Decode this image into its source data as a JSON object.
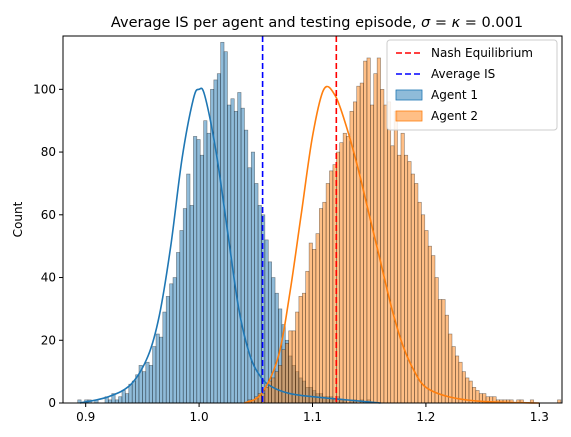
{
  "chart_data": {
    "type": "bar",
    "title": "Average IS per agent and testing episode, σ = κ = 0.001",
    "xlabel": "",
    "ylabel": "Count",
    "xlim": [
      0.88,
      1.32
    ],
    "ylim": [
      0,
      117
    ],
    "x_ticks": [
      0.9,
      1.0,
      1.1,
      1.2,
      1.3
    ],
    "x_tick_labels": [
      "0.9",
      "1.0",
      "1.1",
      "1.2",
      "1.3"
    ],
    "y_ticks": [
      0,
      20,
      40,
      60,
      80,
      100
    ],
    "y_tick_labels": [
      "0",
      "20",
      "40",
      "60",
      "80",
      "100"
    ],
    "grid": false,
    "legend": "top-right",
    "bin_width": 0.003,
    "series": [
      {
        "name": "Agent 1",
        "kind": "histogram",
        "color": "#1f77b4",
        "bin_start": 0.893,
        "counts": [
          1,
          0,
          1,
          1,
          0,
          1,
          0,
          0,
          2,
          1,
          3,
          1,
          2,
          4,
          3,
          6,
          7,
          9,
          12,
          10,
          13,
          12,
          18,
          22,
          21,
          29,
          34,
          38,
          40,
          48,
          55,
          62,
          73,
          63,
          85,
          84,
          79,
          90,
          86,
          100,
          103,
          105,
          115,
          112,
          95,
          97,
          93,
          99,
          94,
          87,
          75,
          80,
          70,
          63,
          60,
          52,
          45,
          40,
          35,
          30,
          25,
          20,
          15,
          12,
          10,
          8,
          7,
          5,
          5,
          4,
          3,
          3,
          2,
          2,
          2,
          1,
          2,
          1,
          1,
          0,
          1,
          1,
          0,
          1,
          0,
          1
        ],
        "kde": [
          [
            0.895,
            0
          ],
          [
            0.92,
            2
          ],
          [
            0.94,
            6
          ],
          [
            0.955,
            15
          ],
          [
            0.965,
            28
          ],
          [
            0.975,
            50
          ],
          [
            0.985,
            78
          ],
          [
            0.995,
            97
          ],
          [
            1.0,
            100
          ],
          [
            1.005,
            98
          ],
          [
            1.015,
            80
          ],
          [
            1.025,
            55
          ],
          [
            1.035,
            30
          ],
          [
            1.045,
            15
          ],
          [
            1.055,
            8
          ],
          [
            1.065,
            5
          ],
          [
            1.08,
            3
          ],
          [
            1.1,
            2
          ],
          [
            1.13,
            1
          ],
          [
            1.16,
            0
          ]
        ]
      },
      {
        "name": "Agent 2",
        "kind": "histogram",
        "color": "#ff7f0e",
        "bin_start": 1.043,
        "counts": [
          1,
          1,
          2,
          3,
          3,
          5,
          7,
          8,
          10,
          12,
          17,
          19,
          23,
          23,
          29,
          34,
          35,
          42,
          51,
          49,
          54,
          62,
          64,
          70,
          74,
          76,
          80,
          83,
          86,
          85,
          93,
          96,
          101,
          102,
          109,
          110,
          95,
          105,
          110,
          100,
          95,
          96,
          82,
          93,
          79,
          86,
          79,
          77,
          73,
          70,
          64,
          60,
          55,
          50,
          47,
          40,
          33,
          33,
          28,
          22,
          18,
          15,
          13,
          10,
          8,
          7,
          5,
          4,
          3,
          3,
          2,
          2,
          2,
          1,
          1,
          1,
          1,
          1,
          0,
          1,
          1,
          0,
          0,
          1,
          0,
          0,
          0,
          0,
          0,
          0,
          0,
          1
        ],
        "kde": [
          [
            1.04,
            0
          ],
          [
            1.055,
            3
          ],
          [
            1.07,
            15
          ],
          [
            1.08,
            35
          ],
          [
            1.09,
            60
          ],
          [
            1.1,
            85
          ],
          [
            1.11,
            100
          ],
          [
            1.12,
            98
          ],
          [
            1.13,
            88
          ],
          [
            1.14,
            75
          ],
          [
            1.15,
            60
          ],
          [
            1.16,
            45
          ],
          [
            1.17,
            30
          ],
          [
            1.18,
            18
          ],
          [
            1.19,
            10
          ],
          [
            1.2,
            5
          ],
          [
            1.22,
            2
          ],
          [
            1.25,
            0.5
          ],
          [
            1.3,
            0
          ]
        ]
      }
    ],
    "reference_lines": [
      {
        "name": "Nash Equilibrium",
        "x": 1.121,
        "color": "#ff0000",
        "style": "dashed"
      },
      {
        "name": "Average IS",
        "x": 1.056,
        "color": "#0000ff",
        "style": "dashed"
      }
    ]
  }
}
